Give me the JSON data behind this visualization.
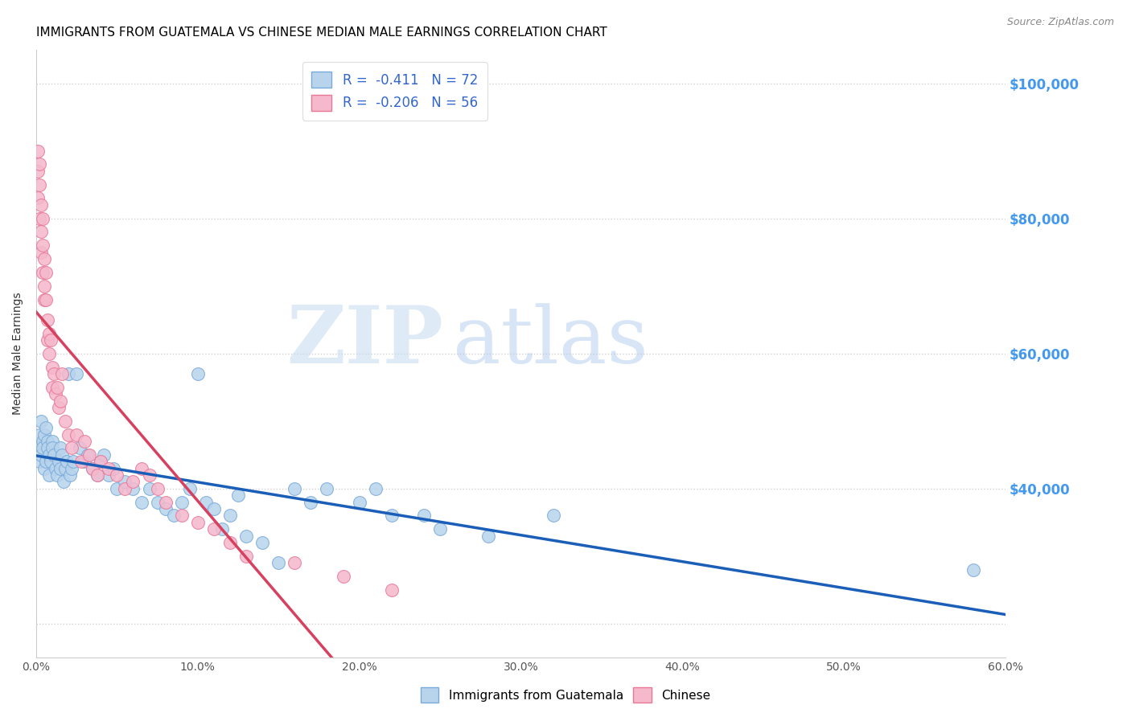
{
  "title": "IMMIGRANTS FROM GUATEMALA VS CHINESE MEDIAN MALE EARNINGS CORRELATION CHART",
  "source": "Source: ZipAtlas.com",
  "ylabel": "Median Male Earnings",
  "xlim": [
    0.0,
    0.6
  ],
  "ylim": [
    15000,
    105000
  ],
  "xticks": [
    0.0,
    0.1,
    0.2,
    0.3,
    0.4,
    0.5,
    0.6
  ],
  "xticklabels": [
    "0.0%",
    "10.0%",
    "20.0%",
    "30.0%",
    "40.0%",
    "50.0%",
    "60.0%"
  ],
  "yticks_right": [
    20000,
    40000,
    60000,
    80000,
    100000
  ],
  "yticklabels_right": [
    "",
    "$40,000",
    "$60,000",
    "$80,000",
    "$100,000"
  ],
  "grid_yticks": [
    20000,
    40000,
    60000,
    80000,
    100000
  ],
  "watermark_zip": "ZIP",
  "watermark_atlas": "atlas",
  "blue_fill": "#b8d4ec",
  "blue_edge": "#7aaadb",
  "pink_fill": "#f5b8cc",
  "pink_edge": "#e87898",
  "blue_line_color": "#1a5eb8",
  "pink_line_color": "#d84060",
  "pink_dash_color": "#e89090",
  "right_axis_color": "#4499ee",
  "legend_label_color": "#3366cc",
  "legend_blue_label": "R =  -0.411   N = 72",
  "legend_pink_label": "R =  -0.206   N = 56",
  "title_fontsize": 11,
  "guatemala_x": [
    0.001,
    0.002,
    0.002,
    0.003,
    0.003,
    0.004,
    0.004,
    0.005,
    0.005,
    0.006,
    0.006,
    0.007,
    0.007,
    0.008,
    0.008,
    0.009,
    0.01,
    0.01,
    0.011,
    0.012,
    0.013,
    0.014,
    0.015,
    0.015,
    0.016,
    0.017,
    0.018,
    0.019,
    0.02,
    0.021,
    0.022,
    0.023,
    0.025,
    0.027,
    0.03,
    0.032,
    0.035,
    0.038,
    0.04,
    0.042,
    0.045,
    0.048,
    0.05,
    0.055,
    0.06,
    0.065,
    0.07,
    0.075,
    0.08,
    0.085,
    0.09,
    0.095,
    0.1,
    0.105,
    0.11,
    0.115,
    0.12,
    0.125,
    0.13,
    0.14,
    0.15,
    0.16,
    0.17,
    0.18,
    0.2,
    0.21,
    0.22,
    0.24,
    0.25,
    0.28,
    0.32,
    0.58
  ],
  "guatemala_y": [
    46000,
    48000,
    44000,
    50000,
    45000,
    47000,
    46000,
    48000,
    43000,
    49000,
    44000,
    47000,
    46000,
    45000,
    42000,
    44000,
    47000,
    46000,
    45000,
    43000,
    42000,
    44000,
    46000,
    43000,
    45000,
    41000,
    43000,
    44000,
    57000,
    42000,
    43000,
    44000,
    57000,
    46000,
    44000,
    45000,
    43000,
    42000,
    44000,
    45000,
    42000,
    43000,
    40000,
    41000,
    40000,
    38000,
    40000,
    38000,
    37000,
    36000,
    38000,
    40000,
    57000,
    38000,
    37000,
    34000,
    36000,
    39000,
    33000,
    32000,
    29000,
    40000,
    38000,
    40000,
    38000,
    40000,
    36000,
    36000,
    34000,
    33000,
    36000,
    28000
  ],
  "chinese_x": [
    0.001,
    0.001,
    0.001,
    0.002,
    0.002,
    0.002,
    0.003,
    0.003,
    0.003,
    0.004,
    0.004,
    0.004,
    0.005,
    0.005,
    0.005,
    0.006,
    0.006,
    0.007,
    0.007,
    0.008,
    0.008,
    0.009,
    0.01,
    0.01,
    0.011,
    0.012,
    0.013,
    0.014,
    0.015,
    0.016,
    0.018,
    0.02,
    0.022,
    0.025,
    0.028,
    0.03,
    0.033,
    0.035,
    0.038,
    0.04,
    0.045,
    0.05,
    0.055,
    0.06,
    0.065,
    0.07,
    0.075,
    0.08,
    0.09,
    0.1,
    0.11,
    0.12,
    0.13,
    0.16,
    0.19,
    0.22
  ],
  "chinese_y": [
    90000,
    87000,
    83000,
    88000,
    85000,
    80000,
    82000,
    78000,
    75000,
    80000,
    76000,
    72000,
    74000,
    70000,
    68000,
    72000,
    68000,
    65000,
    62000,
    63000,
    60000,
    62000,
    58000,
    55000,
    57000,
    54000,
    55000,
    52000,
    53000,
    57000,
    50000,
    48000,
    46000,
    48000,
    44000,
    47000,
    45000,
    43000,
    42000,
    44000,
    43000,
    42000,
    40000,
    41000,
    43000,
    42000,
    40000,
    38000,
    36000,
    35000,
    34000,
    32000,
    30000,
    29000,
    27000,
    25000
  ]
}
